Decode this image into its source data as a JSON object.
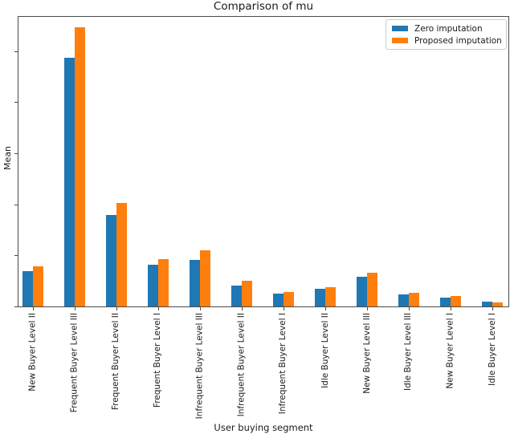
{
  "chart_data": {
    "type": "bar",
    "title": "Comparison of mu",
    "xlabel": "User buying segment",
    "ylabel": "Mean",
    "categories": [
      "New Buyer Level II",
      "Frequent Buyer Level III",
      "Frequent Buyer Level II",
      "Frequent Buyer Level I",
      "Infrequent Buyer Level III",
      "Infrequent Buyer Level II",
      "Infrequent Buyer Level I",
      "Idle Buyer Level II",
      "New Buyer Level III",
      "Idle Buyer Level III",
      "New Buyer Level I",
      "Idle Buyer Level I"
    ],
    "series": [
      {
        "name": "Zero imputation",
        "color": "#1f77b4",
        "values": [
          0.69,
          4.86,
          1.79,
          0.82,
          0.91,
          0.41,
          0.25,
          0.35,
          0.58,
          0.24,
          0.17,
          0.1
        ]
      },
      {
        "name": "Proposed imputation",
        "color": "#ff7f0e",
        "values": [
          0.79,
          5.46,
          2.02,
          0.93,
          1.1,
          0.51,
          0.29,
          0.37,
          0.66,
          0.26,
          0.2,
          0.08
        ]
      }
    ],
    "ylim": [
      0,
      5.67
    ],
    "y_ticks": [
      0,
      1,
      2,
      3,
      4,
      5
    ],
    "y_tick_labels_visible": false,
    "grid": false,
    "legend_position": "upper right"
  },
  "style": {
    "axis_color": "#4a4a4a",
    "text_color": "#1a1a1a",
    "legend_border_color": "#cccccc",
    "background": "#ffffff"
  }
}
